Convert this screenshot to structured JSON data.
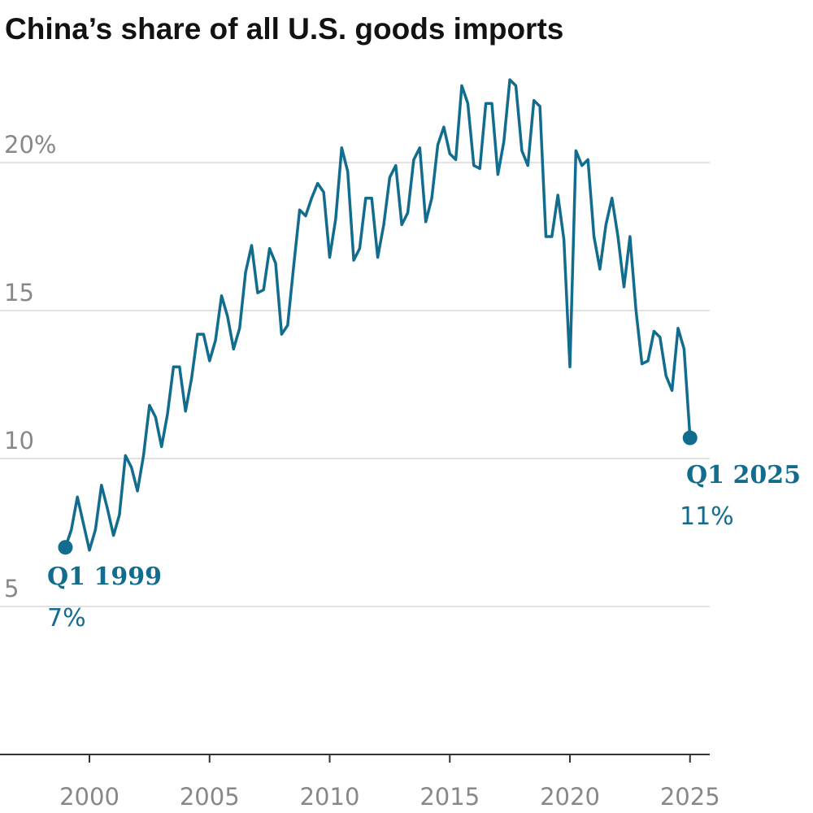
{
  "chart_data": {
    "type": "line",
    "title": "China’s share of all U.S. goods imports",
    "xlabel": "",
    "ylabel": "",
    "xlim": [
      1997.0,
      2026.0
    ],
    "ylim": [
      0,
      25
    ],
    "y_ticks": [
      {
        "value": 5,
        "label": "5"
      },
      {
        "value": 10,
        "label": "10"
      },
      {
        "value": 15,
        "label": "15"
      },
      {
        "value": 20,
        "label": "20%"
      }
    ],
    "x_ticks": [
      {
        "value": 2000,
        "label": "2000"
      },
      {
        "value": 2005,
        "label": "2005"
      },
      {
        "value": 2010,
        "label": "2010"
      },
      {
        "value": 2015,
        "label": "2015"
      },
      {
        "value": 2020,
        "label": "2020"
      },
      {
        "value": 2025,
        "label": "2025"
      }
    ],
    "grid": true,
    "color": "#126c8e",
    "x": [
      1999.0,
      1999.25,
      1999.5,
      1999.75,
      2000.0,
      2000.25,
      2000.5,
      2000.75,
      2001.0,
      2001.25,
      2001.5,
      2001.75,
      2002.0,
      2002.25,
      2002.5,
      2002.75,
      2003.0,
      2003.25,
      2003.5,
      2003.75,
      2004.0,
      2004.25,
      2004.5,
      2004.75,
      2005.0,
      2005.25,
      2005.5,
      2005.75,
      2006.0,
      2006.25,
      2006.5,
      2006.75,
      2007.0,
      2007.25,
      2007.5,
      2007.75,
      2008.0,
      2008.25,
      2008.5,
      2008.75,
      2009.0,
      2009.25,
      2009.5,
      2009.75,
      2010.0,
      2010.25,
      2010.5,
      2010.75,
      2011.0,
      2011.25,
      2011.5,
      2011.75,
      2012.0,
      2012.25,
      2012.5,
      2012.75,
      2013.0,
      2013.25,
      2013.5,
      2013.75,
      2014.0,
      2014.25,
      2014.5,
      2014.75,
      2015.0,
      2015.25,
      2015.5,
      2015.75,
      2016.0,
      2016.25,
      2016.5,
      2016.75,
      2017.0,
      2017.25,
      2017.5,
      2017.75,
      2018.0,
      2018.25,
      2018.5,
      2018.75,
      2019.0,
      2019.25,
      2019.5,
      2019.75,
      2020.0,
      2020.25,
      2020.5,
      2020.75,
      2021.0,
      2021.25,
      2021.5,
      2021.75,
      2022.0,
      2022.25,
      2022.5,
      2022.75,
      2023.0,
      2023.25,
      2023.5,
      2023.75,
      2024.0,
      2024.25,
      2024.5,
      2024.75,
      2025.0
    ],
    "series": [
      {
        "values": [
          7.0,
          7.6,
          8.7,
          7.8,
          6.9,
          7.6,
          9.1,
          8.3,
          7.4,
          8.1,
          10.1,
          9.7,
          8.9,
          10.1,
          11.8,
          11.4,
          10.4,
          11.5,
          13.1,
          13.1,
          11.6,
          12.7,
          14.2,
          14.2,
          13.3,
          14.0,
          15.5,
          14.8,
          13.7,
          14.4,
          16.3,
          17.2,
          15.6,
          15.7,
          17.1,
          16.6,
          14.2,
          14.5,
          16.5,
          18.4,
          18.2,
          18.8,
          19.3,
          19.0,
          16.8,
          18.1,
          20.5,
          19.7,
          16.7,
          17.1,
          18.8,
          18.8,
          16.8,
          17.9,
          19.5,
          19.9,
          17.9,
          18.3,
          20.1,
          20.5,
          18.0,
          18.8,
          20.6,
          21.2,
          20.3,
          20.1,
          22.6,
          22.0,
          19.9,
          19.8,
          22.0,
          22.0,
          19.6,
          20.7,
          22.8,
          22.6,
          20.4,
          19.9,
          22.1,
          21.9,
          17.5,
          17.5,
          18.9,
          17.4,
          13.1,
          20.4,
          19.9,
          20.1,
          17.5,
          16.4,
          17.9,
          18.8,
          17.5,
          15.8,
          17.5,
          15.0,
          13.2,
          13.3,
          14.3,
          14.1,
          12.8,
          12.3,
          14.4,
          13.7,
          10.7
        ]
      }
    ],
    "annotations": {
      "start": {
        "period": "Q1 1999",
        "value": "7%"
      },
      "end": {
        "period": "Q1 2025",
        "value": "11%"
      }
    }
  }
}
